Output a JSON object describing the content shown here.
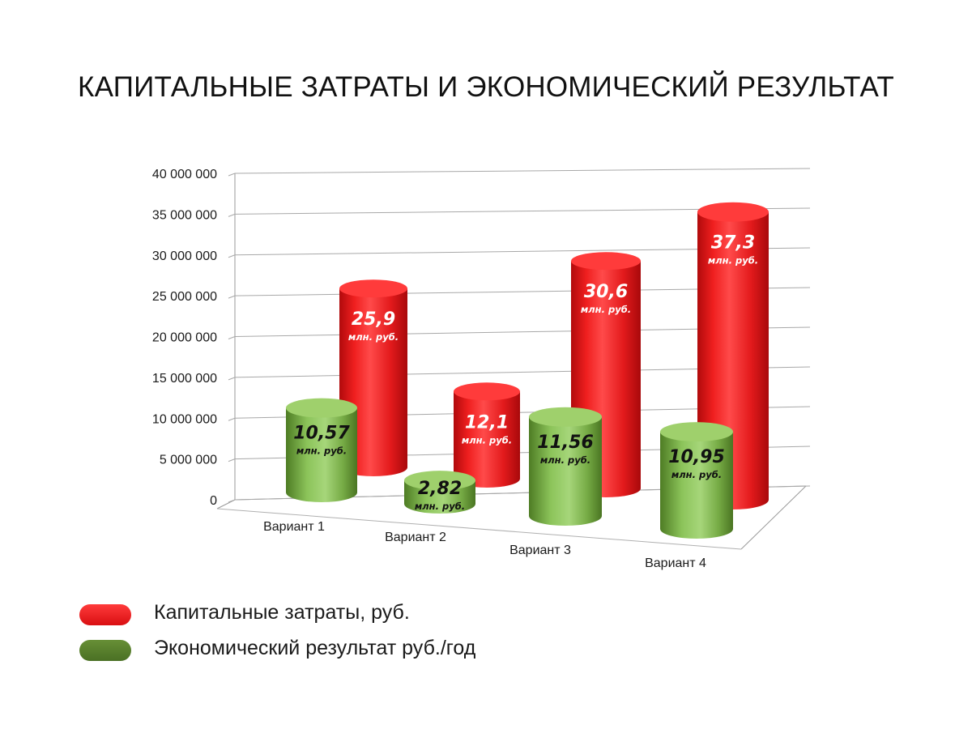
{
  "title": "КАПИТАЛЬНЫЕ ЗАТРАТЫ И ЭКОНОМИЧЕСКИЙ РЕЗУЛЬТАТ",
  "colors": {
    "capex": "#e8191c",
    "result": "#4f7a2a",
    "result_light": "#8fc35b"
  },
  "chart_data": {
    "type": "bar",
    "style": "3d-cylinder",
    "title": "КАПИТАЛЬНЫЕ ЗАТРАТЫ И ЭКОНОМИЧЕСКИЙ РЕЗУЛЬТАТ",
    "categories": [
      "Вариант 1",
      "Вариант 2",
      "Вариант 3",
      "Вариант 4"
    ],
    "y_ticks": [
      "0",
      "5 000 000",
      "10 000 000",
      "15 000 000",
      "20 000 000",
      "25 000 000",
      "30 000 000",
      "35 000 000",
      "40 000 000"
    ],
    "ylim": [
      0,
      40000000
    ],
    "grid": true,
    "legend_position": "bottom-left",
    "value_unit_label": "млн. руб.",
    "series": [
      {
        "name": "Капитальные затраты, руб.",
        "values": [
          25900000,
          12100000,
          30600000,
          37300000
        ],
        "labels": [
          "25,9",
          "12,1",
          "30,6",
          "37,3"
        ]
      },
      {
        "name": "Экономический результат руб./год",
        "values": [
          10570000,
          2820000,
          11560000,
          10950000
        ],
        "labels": [
          "10,57",
          "2,82",
          "11,56",
          "10,95"
        ]
      }
    ]
  }
}
